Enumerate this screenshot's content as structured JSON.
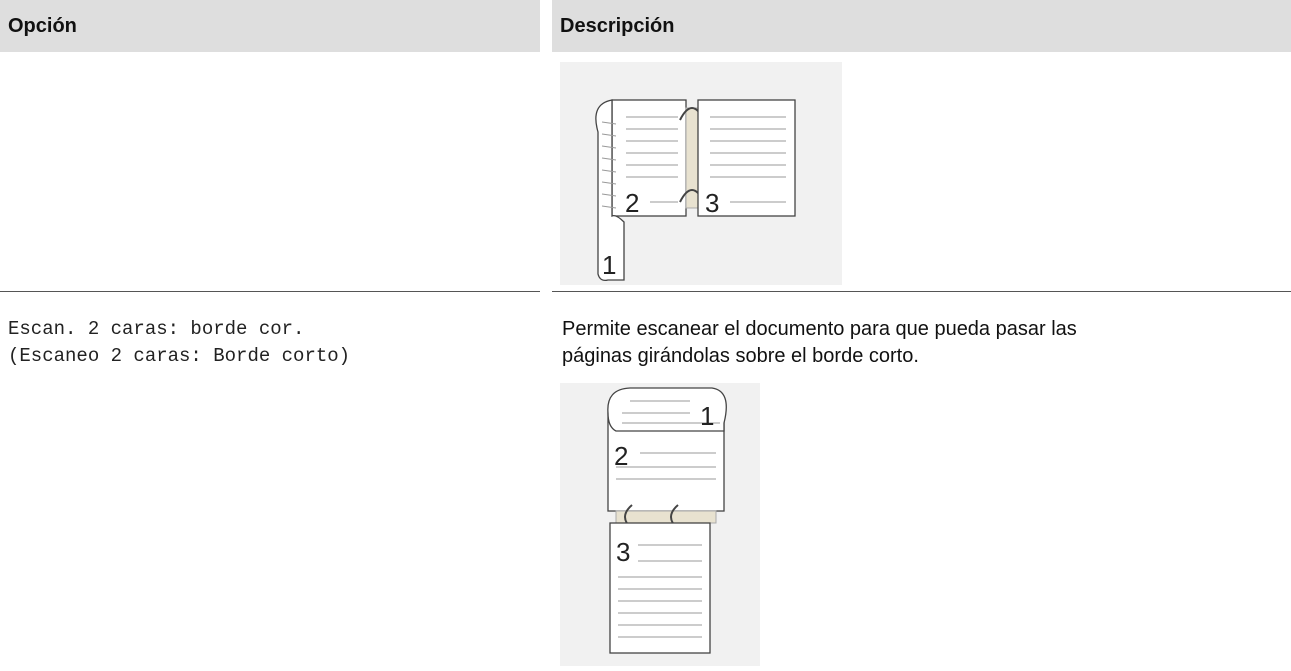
{
  "table": {
    "header": [
      "Opción",
      "Descripción"
    ],
    "rows": [
      {
        "option": [],
        "description": [],
        "figure": [
          "2",
          "3",
          "1"
        ]
      },
      {
        "option": [
          "Escan. 2 caras: borde cor.",
          "(Escaneo 2 caras: Borde corto)"
        ],
        "description": [
          "Permite escanear el documento para que pueda pasar las",
          "páginas girándolas sobre el borde corto."
        ],
        "figure": [
          "1",
          "2",
          "3"
        ]
      }
    ]
  }
}
